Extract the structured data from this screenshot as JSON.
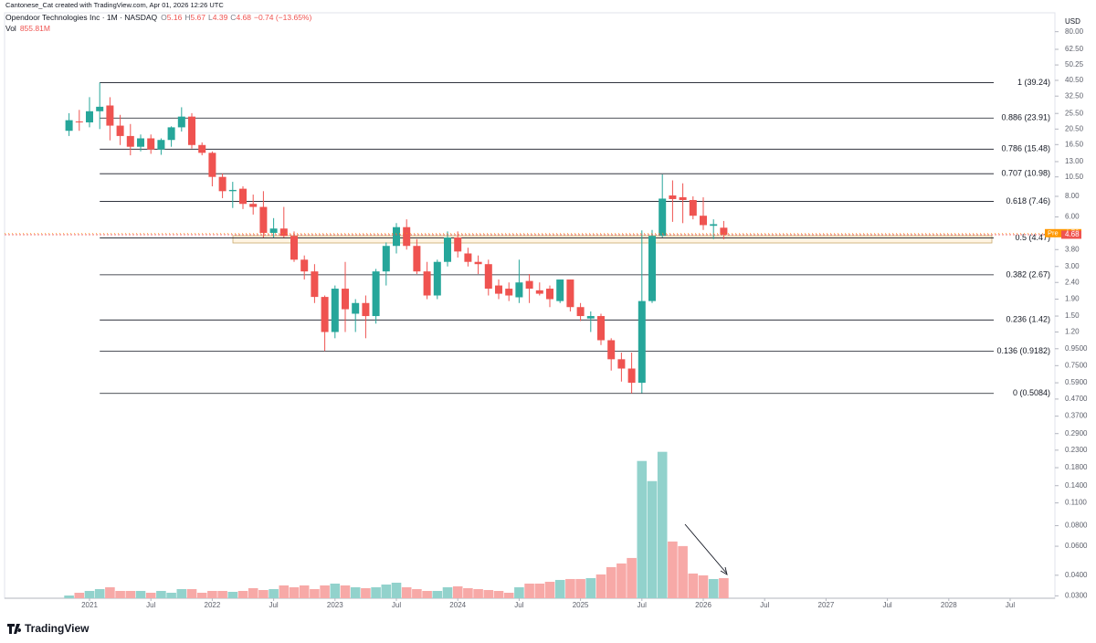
{
  "credit": "Cantonese_Cat created with TradingView.com, Apr 01, 2026 12:26 UTC",
  "footer": "TradingView",
  "chart_data": {
    "type": "candlestick",
    "symbol": "Opendoor Technologies Inc · 1M · NASDAQ",
    "ohlc_letters": [
      "O",
      "H",
      "L",
      "C"
    ],
    "change_label": "−0.74 (−13.65%)",
    "volume_title": "Vol",
    "volume_label": "855.81M",
    "currency": "USD",
    "log_scale": true,
    "grid": false,
    "up_color": "#26a69a",
    "down_color": "#ef5350",
    "volume_up_color": "#92d2cc",
    "volume_down_color": "#f7a9a7",
    "fib_color": "#131722",
    "x": [
      "2020-11",
      "2020-12",
      "2021-01",
      "2021-02",
      "2021-03",
      "2021-04",
      "2021-05",
      "2021-06",
      "2021-07",
      "2021-08",
      "2021-09",
      "2021-10",
      "2021-11",
      "2021-12",
      "2022-01",
      "2022-02",
      "2022-03",
      "2022-04",
      "2022-05",
      "2022-06",
      "2022-07",
      "2022-08",
      "2022-09",
      "2022-10",
      "2022-11",
      "2022-12",
      "2023-01",
      "2023-02",
      "2023-03",
      "2023-04",
      "2023-05",
      "2023-06",
      "2023-07",
      "2023-08",
      "2023-09",
      "2023-10",
      "2023-11",
      "2023-12",
      "2024-01",
      "2024-02",
      "2024-03",
      "2024-04",
      "2024-05",
      "2024-06",
      "2024-07",
      "2024-08",
      "2024-09",
      "2024-10",
      "2024-11",
      "2024-12",
      "2025-01",
      "2025-02",
      "2025-03",
      "2025-04",
      "2025-05",
      "2025-06",
      "2025-07",
      "2025-08",
      "2025-09",
      "2025-10",
      "2025-11",
      "2025-12",
      "2026-01",
      "2026-02",
      "2026-03"
    ],
    "open": [
      20,
      22.8,
      22.5,
      26.3,
      28.5,
      21.5,
      18.6,
      16,
      18,
      15.4,
      17.6,
      21,
      24.4,
      16.4,
      14.7,
      10.5,
      8.6,
      8.9,
      7.2,
      6.9,
      4.8,
      5.1,
      4.6,
      3.3,
      2.8,
      1.96,
      1.2,
      2.2,
      1.55,
      1.8,
      1.5,
      2.8,
      4.0,
      5.2,
      4.0,
      2.8,
      2.0,
      3.2,
      4.5,
      3.6,
      3.2,
      3.1,
      2.3,
      2.2,
      1.95,
      2.45,
      2.15,
      2.2,
      1.85,
      2.5,
      1.7,
      1.45,
      1.5,
      1.07,
      0.82,
      0.72,
      0.59,
      1.85,
      4.6,
      8.1,
      7.9,
      7.6,
      6.1,
      5.3,
      5.16
    ],
    "high": [
      25.6,
      26.8,
      32,
      39.24,
      32,
      25,
      22,
      19,
      19,
      18,
      21.3,
      27.8,
      25.6,
      17,
      15,
      11,
      9.8,
      9.2,
      8.2,
      8.6,
      5.9,
      6.9,
      4.9,
      3.5,
      3.1,
      2.0,
      2.3,
      3.2,
      1.9,
      2.0,
      2.9,
      4.2,
      5.5,
      5.8,
      4.4,
      3.2,
      3.3,
      4.9,
      4.9,
      3.9,
      3.5,
      3.3,
      2.5,
      2.4,
      3.3,
      2.7,
      2.4,
      2.3,
      2.5,
      2.5,
      1.8,
      1.6,
      1.55,
      1.1,
      0.9,
      0.9,
      4.97,
      5.0,
      10.87,
      10,
      9.6,
      8.0,
      7.9,
      5.8,
      5.67
    ],
    "low": [
      18.6,
      20,
      21,
      20.5,
      17.5,
      16.4,
      14.2,
      15,
      14.5,
      14.3,
      16,
      19.8,
      15.6,
      14.2,
      9.2,
      7.8,
      6.8,
      6.7,
      6.2,
      4.5,
      4.5,
      4.5,
      3.2,
      2.5,
      1.8,
      0.92,
      1.1,
      1.2,
      1.2,
      1.1,
      1.35,
      2.3,
      3.6,
      3.8,
      2.7,
      1.9,
      1.9,
      3.0,
      3.4,
      3.0,
      2.7,
      2.0,
      1.9,
      1.85,
      1.8,
      1.8,
      2.0,
      1.7,
      1.8,
      1.6,
      1.4,
      1.2,
      1.0,
      0.7,
      0.6,
      0.5084,
      0.51,
      1.8,
      4.5,
      5.6,
      5.5,
      5.8,
      5.0,
      4.4,
      4.39
    ],
    "close": [
      23.2,
      22.5,
      26.3,
      28,
      21.5,
      18.6,
      16,
      18,
      15.4,
      17.6,
      21,
      24.4,
      16.4,
      14.7,
      10.5,
      8.6,
      8.75,
      7.2,
      6.9,
      4.8,
      5.1,
      4.6,
      3.3,
      2.8,
      1.96,
      1.2,
      2.2,
      1.65,
      1.8,
      1.5,
      2.8,
      4.0,
      5.2,
      4.0,
      2.8,
      2.0,
      3.2,
      4.5,
      3.7,
      3.2,
      3.1,
      2.2,
      2.05,
      2.0,
      2.4,
      2.2,
      2.05,
      1.9,
      2.5,
      1.7,
      1.5,
      1.5,
      1.07,
      0.82,
      0.72,
      0.59,
      1.85,
      4.6,
      7.75,
      7.7,
      7.6,
      6.1,
      5.35,
      5.42,
      4.68
    ],
    "volume": [
      117,
      234,
      312,
      390,
      468,
      312,
      312,
      312,
      234,
      312,
      234,
      390,
      390,
      234,
      312,
      312,
      273,
      312,
      429,
      351,
      390,
      546,
      468,
      546,
      390,
      546,
      624,
      546,
      468,
      429,
      468,
      585,
      663,
      468,
      390,
      312,
      312,
      468,
      507,
      429,
      390,
      351,
      312,
      234,
      468,
      624,
      624,
      702,
      780,
      819,
      819,
      858,
      1014,
      1326,
      1482,
      1716,
      5850,
      4992,
      6240,
      2418,
      2223,
      1053,
      975,
      819,
      855.81
    ],
    "volume_ylim": [
      0,
      6500
    ],
    "pre_label": "Pre",
    "pre_price": 4.78,
    "pre_color": "#ff9800",
    "ylim": [
      0.029,
      99
    ],
    "yticks": [
      {
        "value": 80,
        "label": "80.00"
      },
      {
        "value": 62.5,
        "label": "62.50"
      },
      {
        "value": 50.25,
        "label": "50.25"
      },
      {
        "value": 40.5,
        "label": "40.50"
      },
      {
        "value": 32.5,
        "label": "32.50"
      },
      {
        "value": 25.5,
        "label": "25.50"
      },
      {
        "value": 20.5,
        "label": "20.50"
      },
      {
        "value": 16.5,
        "label": "16.50"
      },
      {
        "value": 13,
        "label": "13.00"
      },
      {
        "value": 10.5,
        "label": "10.50"
      },
      {
        "value": 8,
        "label": "8.00"
      },
      {
        "value": 6,
        "label": "6.00"
      },
      {
        "value": 3.8,
        "label": "3.80"
      },
      {
        "value": 3,
        "label": "3.00"
      },
      {
        "value": 2.4,
        "label": "2.40"
      },
      {
        "value": 1.9,
        "label": "1.90"
      },
      {
        "value": 1.5,
        "label": "1.50"
      },
      {
        "value": 1.2,
        "label": "1.20"
      },
      {
        "value": 0.95,
        "label": "0.9500"
      },
      {
        "value": 0.75,
        "label": "0.7500"
      },
      {
        "value": 0.59,
        "label": "0.5900"
      },
      {
        "value": 0.47,
        "label": "0.4700"
      },
      {
        "value": 0.37,
        "label": "0.3700"
      },
      {
        "value": 0.29,
        "label": "0.2900"
      },
      {
        "value": 0.23,
        "label": "0.2300"
      },
      {
        "value": 0.18,
        "label": "0.1800"
      },
      {
        "value": 0.14,
        "label": "0.1400"
      },
      {
        "value": 0.11,
        "label": "0.1100"
      },
      {
        "value": 0.08,
        "label": "0.0800"
      },
      {
        "value": 0.06,
        "label": "0.0600"
      },
      {
        "value": 0.04,
        "label": "0.0400"
      },
      {
        "value": 0.03,
        "label": "0.0300"
      }
    ],
    "xticks": [
      {
        "value": "2021-01",
        "label": "2021"
      },
      {
        "value": "2021-07",
        "label": "Jul"
      },
      {
        "value": "2022-01",
        "label": "2022"
      },
      {
        "value": "2022-07",
        "label": "Jul"
      },
      {
        "value": "2023-01",
        "label": "2023"
      },
      {
        "value": "2023-07",
        "label": "Jul"
      },
      {
        "value": "2024-01",
        "label": "2024"
      },
      {
        "value": "2024-07",
        "label": "Jul"
      },
      {
        "value": "2025-01",
        "label": "2025"
      },
      {
        "value": "2025-07",
        "label": "Jul"
      },
      {
        "value": "2026-01",
        "label": "2026"
      },
      {
        "value": "2026-07",
        "label": "Jul"
      },
      {
        "value": "2027-01",
        "label": "2027"
      },
      {
        "value": "2027-07",
        "label": "Jul"
      },
      {
        "value": "2028-01",
        "label": "2028"
      },
      {
        "value": "2028-07",
        "label": "Jul"
      }
    ],
    "fib_levels": [
      {
        "value": 39.24,
        "label": "1 (39.24)"
      },
      {
        "value": 23.91,
        "label": "0.886 (23.91)"
      },
      {
        "value": 15.48,
        "label": "0.786 (15.48)"
      },
      {
        "value": 10.98,
        "label": "0.707 (10.98)"
      },
      {
        "value": 7.46,
        "label": "0.618 (7.46)"
      },
      {
        "value": 4.47,
        "label": "0.5 (4.47)"
      },
      {
        "value": 2.67,
        "label": "0.382 (2.67)"
      },
      {
        "value": 1.42,
        "label": "0.236 (1.42)"
      },
      {
        "value": 0.9182,
        "label": "0.136 (0.9182)"
      },
      {
        "value": 0.5084,
        "label": "0 (0.5084)"
      }
    ]
  }
}
